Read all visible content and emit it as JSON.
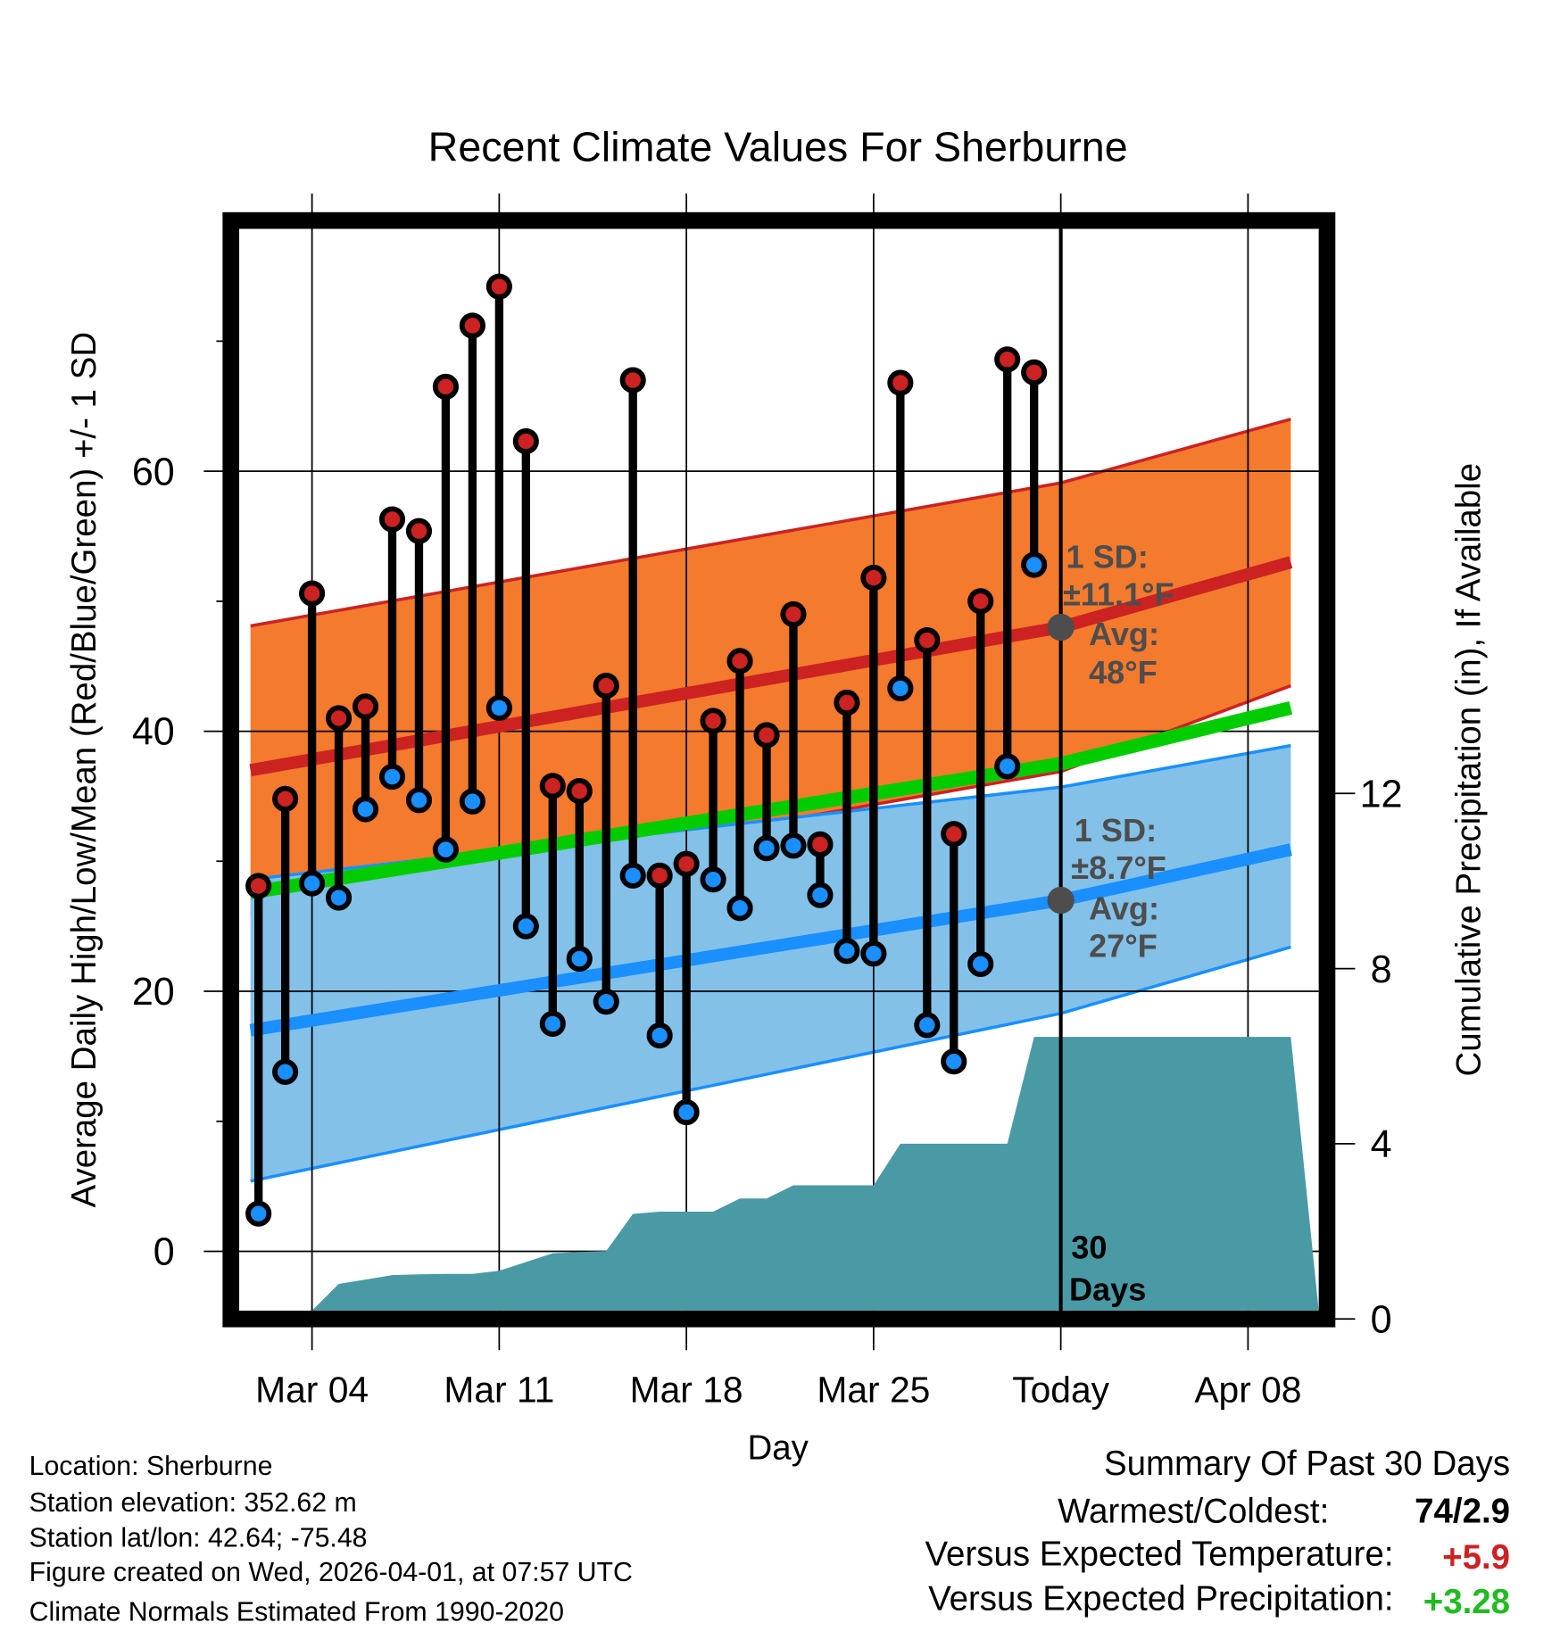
{
  "chart_data": {
    "type": "line",
    "title": "Recent Climate Values For Sherburne",
    "xlabel": "Day",
    "ylabel": "Average Daily High/Low/Mean (Red/Blue/Green) +/- 1 SD",
    "y2label": "Cumulative Precipitation (in), If Available",
    "ylim": [
      -4.6,
      78.6
    ],
    "y2lim": [
      0,
      24.7
    ],
    "x_day_range": [
      1.7,
      40.6
    ],
    "x_ticks": [
      {
        "day": 4,
        "label": "Mar 04"
      },
      {
        "day": 11,
        "label": "Mar 11"
      },
      {
        "day": 18,
        "label": "Mar 18"
      },
      {
        "day": 25,
        "label": "Mar 25"
      },
      {
        "day": 32,
        "label": "Today"
      },
      {
        "day": 39,
        "label": "Apr 08"
      }
    ],
    "y_ticks": [
      0,
      20,
      40,
      60
    ],
    "y2_ticks": [
      0,
      4,
      8,
      12
    ],
    "daily": {
      "day": [
        2,
        3,
        4,
        5,
        6,
        7,
        8,
        9,
        10,
        11,
        12,
        13,
        14,
        15,
        16,
        17,
        18,
        19,
        20,
        21,
        22,
        23,
        24,
        25,
        26,
        27,
        28,
        29,
        30,
        31
      ],
      "high": [
        28.1,
        34.8,
        50.6,
        41.0,
        41.9,
        56.3,
        55.4,
        66.5,
        71.2,
        74.2,
        62.3,
        35.8,
        35.4,
        43.5,
        67.0,
        28.9,
        29.8,
        40.8,
        45.4,
        39.7,
        49.0,
        31.3,
        42.2,
        51.8,
        66.8,
        47.0,
        32.1,
        50.0,
        68.6,
        67.6
      ],
      "low": [
        2.9,
        13.8,
        28.3,
        27.2,
        34.0,
        36.5,
        34.7,
        30.9,
        34.6,
        41.8,
        25.0,
        17.5,
        22.5,
        19.2,
        28.9,
        16.6,
        10.7,
        28.6,
        26.4,
        31.0,
        31.2,
        27.4,
        23.1,
        22.9,
        43.3,
        17.4,
        14.6,
        22.1,
        37.3,
        52.8
      ]
    },
    "normals": {
      "day": [
        1.7,
        32,
        40.6
      ],
      "high_mean": [
        37.0,
        48.0,
        53.0
      ],
      "high_upper": [
        48.1,
        59.1,
        64.0
      ],
      "high_lower": [
        25.9,
        36.9,
        43.5
      ],
      "low_mean": [
        17.0,
        27.0,
        30.9
      ],
      "low_upper": [
        28.6,
        35.7,
        38.9
      ],
      "low_lower": [
        5.4,
        18.3,
        23.4
      ],
      "mean": [
        27.6,
        37.5,
        41.8
      ]
    },
    "precip": {
      "day": [
        1.7,
        4,
        5,
        6,
        7,
        8,
        9,
        10,
        11,
        12,
        13,
        14,
        15,
        16,
        17,
        18,
        19,
        20,
        21,
        22,
        23,
        24,
        25,
        26,
        27,
        28,
        29,
        30,
        31,
        40.6
      ],
      "cumulative": [
        0,
        0,
        0.8,
        0.9,
        1.0,
        1.02,
        1.03,
        1.03,
        1.1,
        1.3,
        1.5,
        1.53,
        1.55,
        2.4,
        2.45,
        2.45,
        2.45,
        2.75,
        2.75,
        3.05,
        3.05,
        3.05,
        3.05,
        4.0,
        4.0,
        4.0,
        4.0,
        4.0,
        6.44,
        6.44
      ]
    },
    "annotations": {
      "high_sd": "1 SD:",
      "high_sd_val": "±11.1°F",
      "high_avg": "Avg:",
      "high_avg_val": "48°F",
      "low_sd": "1 SD:",
      "low_sd_val": "±8.7°F",
      "low_avg": "Avg:",
      "low_avg_val": "27°F",
      "days1": "30",
      "days2": "Days"
    },
    "colors": {
      "high": "#cc2222",
      "low": "#1a8fff",
      "orange_band": "#f47a2d",
      "blue_band": "#83c1e8",
      "mean": "#00cc00",
      "precip": "#4a9aa5"
    }
  },
  "footer": {
    "location": "Location: Sherburne",
    "elevation": "Station elevation: 352.62 m",
    "latlon": "Station lat/lon: 42.64; -75.48",
    "created": "Figure created on Wed, 2026-04-01, at 07:57 UTC",
    "normals": "Climate Normals Estimated From 1990-2020"
  },
  "summary": {
    "title": "Summary Of Past 30 Days",
    "warmest_label": "Warmest/Coldest:",
    "warmest_value": "74/2.9",
    "temp_label": "Versus Expected Temperature:",
    "temp_value": "+5.9",
    "precip_label": "Versus Expected Precipitation:",
    "precip_value": "+3.28"
  }
}
